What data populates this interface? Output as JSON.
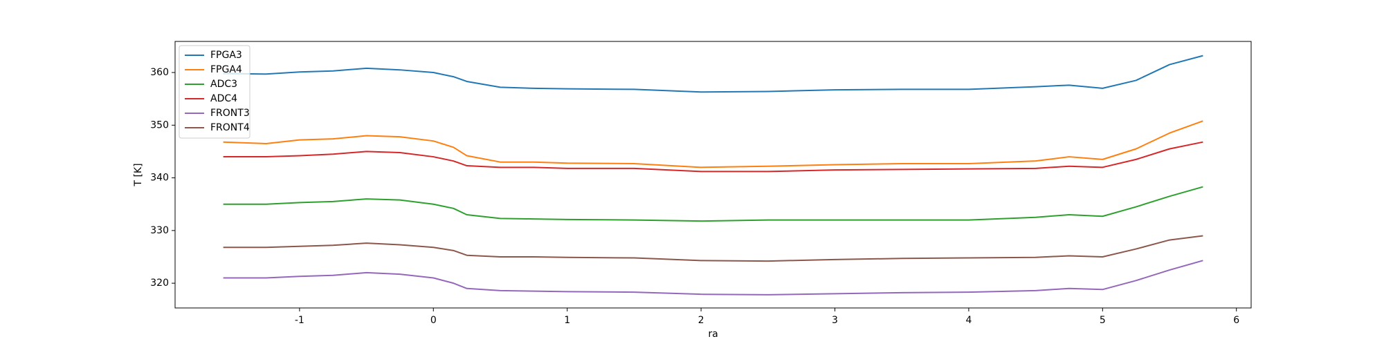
{
  "chart_data": {
    "type": "line",
    "x_label": "ra",
    "y_label": "T [K]",
    "x": [
      -1.57,
      -1.25,
      -1.0,
      -0.75,
      -0.5,
      -0.25,
      0,
      0.15,
      0.25,
      0.5,
      0.75,
      1,
      1.5,
      2,
      2.5,
      3,
      3.5,
      4,
      4.5,
      4.75,
      5,
      5.25,
      5.5,
      5.75
    ],
    "series": [
      {
        "name": "FPGA3",
        "color": "#1f77b4",
        "values": [
          359.8,
          359.7,
          360.1,
          360.3,
          360.8,
          360.5,
          360.0,
          359.2,
          358.3,
          357.2,
          357.0,
          356.9,
          356.8,
          356.3,
          356.4,
          356.7,
          356.8,
          356.8,
          357.3,
          357.6,
          357.0,
          358.5,
          361.5,
          363.2
        ]
      },
      {
        "name": "FPGA4",
        "color": "#ff7f0e",
        "values": [
          346.8,
          346.5,
          347.2,
          347.4,
          348.0,
          347.8,
          347.0,
          345.8,
          344.2,
          343.0,
          343.0,
          342.8,
          342.7,
          342.0,
          342.2,
          342.5,
          342.7,
          342.7,
          343.2,
          344.0,
          343.5,
          345.5,
          348.5,
          350.8
        ]
      },
      {
        "name": "ADC3",
        "color": "#2ca02c",
        "values": [
          335.0,
          335.0,
          335.3,
          335.5,
          336.0,
          335.8,
          335.0,
          334.2,
          333.0,
          332.3,
          332.2,
          332.1,
          332.0,
          331.8,
          332.0,
          332.0,
          332.0,
          332.0,
          332.5,
          333.0,
          332.7,
          334.5,
          336.5,
          338.3
        ]
      },
      {
        "name": "ADC4",
        "color": "#d62728",
        "values": [
          344.0,
          344.0,
          344.2,
          344.5,
          345.0,
          344.8,
          344.0,
          343.2,
          342.3,
          342.0,
          342.0,
          341.8,
          341.8,
          341.2,
          341.2,
          341.5,
          341.6,
          341.7,
          341.8,
          342.2,
          342.0,
          343.5,
          345.5,
          346.8
        ]
      },
      {
        "name": "FRONT3",
        "color": "#9467bd",
        "values": [
          321.0,
          321.0,
          321.3,
          321.5,
          322.0,
          321.7,
          321.0,
          320.0,
          319.0,
          318.6,
          318.5,
          318.4,
          318.3,
          317.9,
          317.8,
          318.0,
          318.2,
          318.3,
          318.6,
          319.0,
          318.8,
          320.5,
          322.5,
          324.3
        ]
      },
      {
        "name": "FRONT4",
        "color": "#8c564b",
        "values": [
          326.8,
          326.8,
          327.0,
          327.2,
          327.6,
          327.3,
          326.8,
          326.2,
          325.3,
          325.0,
          325.0,
          324.9,
          324.8,
          324.3,
          324.2,
          324.5,
          324.7,
          324.8,
          324.9,
          325.2,
          325.0,
          326.5,
          328.2,
          329.0
        ]
      }
    ],
    "xlim": [
      -1.93,
      6.11
    ],
    "xticks": [
      -1,
      0,
      1,
      2,
      3,
      4,
      5,
      6
    ],
    "ylim": [
      315.3,
      365.9
    ],
    "yticks": [
      320,
      330,
      340,
      350,
      360
    ],
    "grid": false,
    "legend": "upper-left"
  }
}
